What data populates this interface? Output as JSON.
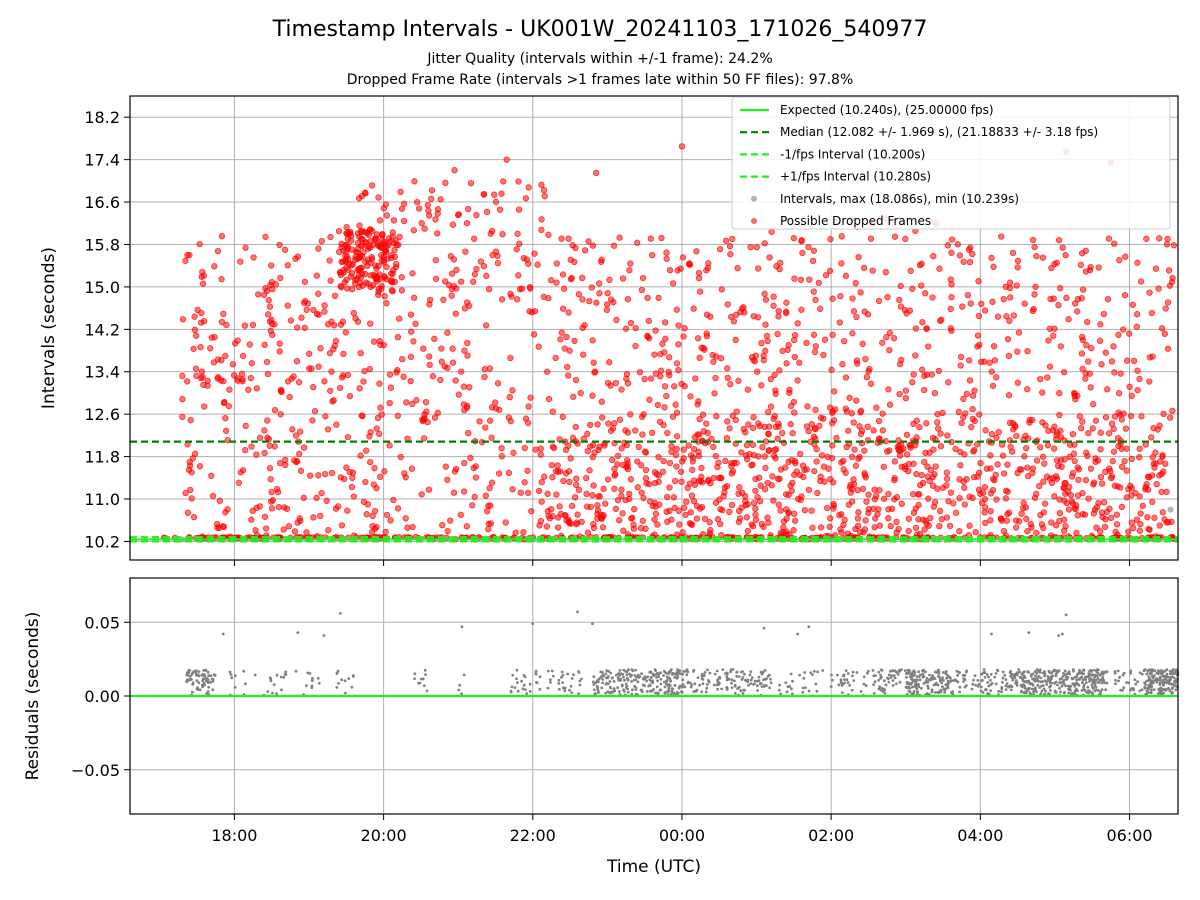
{
  "title": "Timestamp Intervals - UK001W_20241103_171026_540977",
  "subtitle_line1": "Jitter Quality (intervals within +/-1 frame): 24.2%",
  "subtitle_line2": "Dropped Frame Rate (intervals >1 frames late within 50 FF files): 97.8%",
  "chart_data": [
    {
      "type": "scatter",
      "panel": "top",
      "ylabel": "Intervals (seconds)",
      "xlabel": "",
      "ylim": [
        9.85,
        18.6
      ],
      "yticks": [
        10.2,
        11.0,
        11.8,
        12.6,
        13.4,
        14.2,
        15.0,
        15.8,
        16.6,
        17.4,
        18.2
      ],
      "ytick_labels": [
        "10.2",
        "11.0",
        "11.8",
        "12.6",
        "13.4",
        "14.2",
        "15.0",
        "15.8",
        "16.6",
        "17.4",
        "18.2"
      ],
      "xlim_hours": [
        16.6,
        30.65
      ],
      "grid": true,
      "legend_position": "top-right",
      "lines": [
        {
          "name": "Expected (10.240s), (25.00000 fps)",
          "y": 10.24,
          "color": "#22ee22",
          "style": "solid"
        },
        {
          "name": "Median (12.082 +/- 1.969 s), (21.18833 +/- 3.18 fps)",
          "y": 12.082,
          "color": "#008000",
          "style": "dashed"
        },
        {
          "name": "-1/fps Interval (10.200s)",
          "y": 10.2,
          "color": "#22ee22",
          "style": "dashed"
        },
        {
          "name": "+1/fps Interval (10.280s)",
          "y": 10.28,
          "color": "#22ee22",
          "style": "dashed"
        }
      ],
      "series": [
        {
          "name": "Intervals, max (18.086s), min (10.239s)",
          "color": "#808080",
          "marker": "o",
          "points_hours": [
            [
              30.55,
              10.8
            ],
            [
              17.3,
              10.24
            ],
            [
              18.0,
              10.24
            ],
            [
              22.0,
              10.24
            ],
            [
              26.0,
              10.24
            ],
            [
              30.5,
              10.24
            ]
          ]
        },
        {
          "name": "Possible Dropped Frames",
          "color": "#ff0000",
          "marker": "o",
          "x_range_hours": [
            17.0,
            30.6
          ],
          "y_range": [
            10.24,
            18.086
          ]
        }
      ]
    },
    {
      "type": "scatter",
      "panel": "bottom",
      "ylabel": "Residuals (seconds)",
      "xlabel": "Time (UTC)",
      "ylim": [
        -0.08,
        0.08
      ],
      "yticks": [
        -0.05,
        0.0,
        0.05
      ],
      "ytick_labels": [
        "−0.05",
        "0.00",
        "0.05"
      ],
      "xlim_hours": [
        16.6,
        30.65
      ],
      "xticks_hours": [
        18,
        20,
        22,
        24,
        26,
        28,
        30
      ],
      "xtick_labels": [
        "18:00",
        "20:00",
        "22:00",
        "00:00",
        "02:00",
        "04:00",
        "06:00"
      ],
      "grid": true,
      "zero_line": {
        "y": 0.0,
        "color": "#22ee22"
      },
      "outliers": [
        [
          17.85,
          0.042
        ],
        [
          18.85,
          0.043
        ],
        [
          19.2,
          0.041
        ],
        [
          19.42,
          0.056
        ],
        [
          21.05,
          0.047
        ],
        [
          22.0,
          0.049
        ],
        [
          22.6,
          0.057
        ],
        [
          22.8,
          0.049
        ],
        [
          25.1,
          0.046
        ],
        [
          25.55,
          0.042
        ],
        [
          25.7,
          0.047
        ],
        [
          28.15,
          0.042
        ],
        [
          28.65,
          0.043
        ],
        [
          29.05,
          0.041
        ],
        [
          29.1,
          0.042
        ],
        [
          29.15,
          0.055
        ]
      ],
      "series": [
        {
          "name": "Residuals",
          "color": "#808080",
          "y_range": [
            -0.002,
            0.02
          ]
        }
      ]
    }
  ],
  "legend": [
    {
      "label": "Expected (10.240s), (25.00000 fps)",
      "kind": "line-solid",
      "color": "#22ee22"
    },
    {
      "label": "Median (12.082 +/- 1.969 s), (21.18833 +/- 3.18 fps)",
      "kind": "line-dashed",
      "color": "#008000"
    },
    {
      "label": "-1/fps Interval (10.200s)",
      "kind": "line-dashed",
      "color": "#22ee22"
    },
    {
      "label": "+1/fps Interval (10.280s)",
      "kind": "line-dashed",
      "color": "#22ee22"
    },
    {
      "label": "Intervals, max (18.086s), min (10.239s)",
      "kind": "dot",
      "color": "#808080"
    },
    {
      "label": "Possible Dropped Frames",
      "kind": "dot",
      "color": "#ff0000"
    }
  ]
}
